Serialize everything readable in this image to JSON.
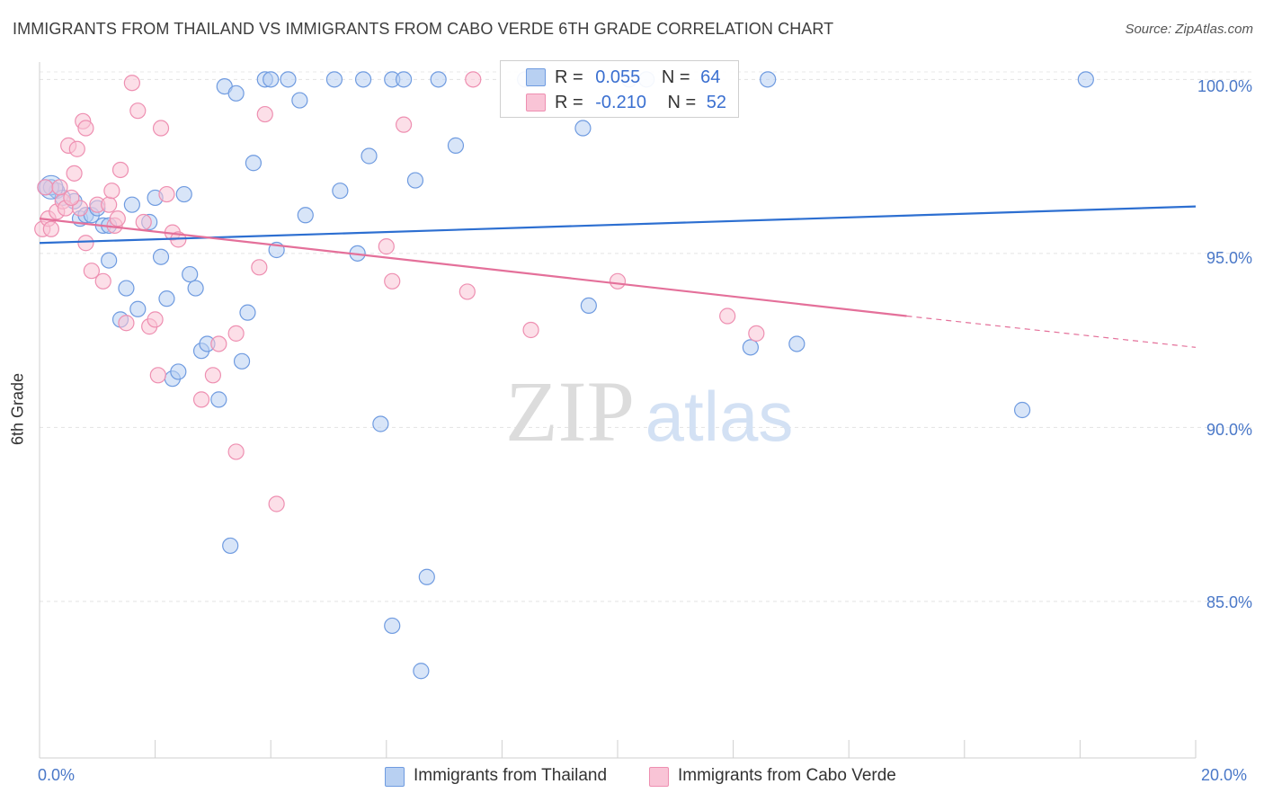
{
  "title": "IMMIGRANTS FROM THAILAND VS IMMIGRANTS FROM CABO VERDE 6TH GRADE CORRELATION CHART",
  "source": "Source: ZipAtlas.com",
  "watermark": {
    "zip": "ZIP",
    "atlas": "atlas"
  },
  "legend_top": {
    "rows": [
      {
        "r_label": "R =",
        "r_value": "0.055",
        "n_label": "N =",
        "n_value": "64",
        "color_fill": "#b8d0f2",
        "color_stroke": "#6f9be0"
      },
      {
        "r_label": "R =",
        "r_value": "-0.210",
        "n_label": "N =",
        "n_value": "52",
        "color_fill": "#f9c4d6",
        "color_stroke": "#ee8fb1"
      }
    ]
  },
  "legend_bottom": {
    "items": [
      {
        "label": "Immigrants from Thailand",
        "color_fill": "#b8d0f2",
        "color_stroke": "#6f9be0"
      },
      {
        "label": "Immigrants from Cabo Verde",
        "color_fill": "#f9c4d6",
        "color_stroke": "#ee8fb1"
      }
    ]
  },
  "chart_data": {
    "type": "scatter",
    "title": "IMMIGRANTS FROM THAILAND VS IMMIGRANTS FROM CABO VERDE 6TH GRADE CORRELATION CHART",
    "xlabel": "",
    "ylabel": "6th Grade",
    "xlim": [
      0,
      20
    ],
    "ylim": [
      80.5,
      100.5
    ],
    "x_ticks": [
      "0.0%",
      "20.0%"
    ],
    "y_ticks": [
      {
        "value": 100,
        "label": "100.0%"
      },
      {
        "value": 95,
        "label": "95.0%"
      },
      {
        "value": 90,
        "label": "90.0%"
      },
      {
        "value": 85,
        "label": "85.0%"
      }
    ],
    "grid": true,
    "series": [
      {
        "name": "Immigrants from Thailand",
        "color": "#6f9be0",
        "fill": "#b8d0f2",
        "trend": {
          "x0": 0,
          "y0": 95.3,
          "x1": 20,
          "y1": 96.35
        },
        "points": [
          [
            0.1,
            96.9
          ],
          [
            0.3,
            96.8
          ],
          [
            0.6,
            96.5
          ],
          [
            0.7,
            96.0
          ],
          [
            0.8,
            96.1
          ],
          [
            0.9,
            96.1
          ],
          [
            1.0,
            96.3
          ],
          [
            1.1,
            95.8
          ],
          [
            1.2,
            95.8
          ],
          [
            1.2,
            94.8
          ],
          [
            1.4,
            93.1
          ],
          [
            1.5,
            94.0
          ],
          [
            1.6,
            96.4
          ],
          [
            1.7,
            93.4
          ],
          [
            1.9,
            95.9
          ],
          [
            2.0,
            96.6
          ],
          [
            2.1,
            94.9
          ],
          [
            2.2,
            93.7
          ],
          [
            2.3,
            91.4
          ],
          [
            2.4,
            91.6
          ],
          [
            2.5,
            96.7
          ],
          [
            2.6,
            94.4
          ],
          [
            2.7,
            94.0
          ],
          [
            2.8,
            92.2
          ],
          [
            2.9,
            92.4
          ],
          [
            3.1,
            90.8
          ],
          [
            3.2,
            99.8
          ],
          [
            3.3,
            86.6
          ],
          [
            3.4,
            99.6
          ],
          [
            3.5,
            91.9
          ],
          [
            3.6,
            93.3
          ],
          [
            3.7,
            97.6
          ],
          [
            3.9,
            100.0
          ],
          [
            4.0,
            100.0
          ],
          [
            4.1,
            95.1
          ],
          [
            4.3,
            100.0
          ],
          [
            4.5,
            99.4
          ],
          [
            4.6,
            96.1
          ],
          [
            5.1,
            100.0
          ],
          [
            5.2,
            96.8
          ],
          [
            5.5,
            95.0
          ],
          [
            5.6,
            100.0
          ],
          [
            5.7,
            97.8
          ],
          [
            5.9,
            90.1
          ],
          [
            6.1,
            100.0
          ],
          [
            6.1,
            84.3
          ],
          [
            6.3,
            100.0
          ],
          [
            6.5,
            97.1
          ],
          [
            6.6,
            83.0
          ],
          [
            6.7,
            85.7
          ],
          [
            6.9,
            100.0
          ],
          [
            7.2,
            98.1
          ],
          [
            8.4,
            100.0
          ],
          [
            9.4,
            98.6
          ],
          [
            9.5,
            93.5
          ],
          [
            10.2,
            100.0
          ],
          [
            10.5,
            100.0
          ],
          [
            12.3,
            92.3
          ],
          [
            12.6,
            100.0
          ],
          [
            13.1,
            92.4
          ],
          [
            17.0,
            90.5
          ],
          [
            18.1,
            100.0
          ],
          [
            0.2,
            96.9
          ],
          [
            0.4,
            96.6
          ]
        ]
      },
      {
        "name": "Immigrants from Cabo Verde",
        "color": "#ee8fb1",
        "fill": "#f9c4d6",
        "trend": {
          "x0": 0,
          "y0": 96.0,
          "x1": 15.0,
          "y1": 93.2,
          "dash_x1": 20,
          "dash_y1": 92.3
        },
        "points": [
          [
            0.05,
            95.7
          ],
          [
            0.1,
            96.9
          ],
          [
            0.15,
            96.0
          ],
          [
            0.2,
            95.7
          ],
          [
            0.3,
            96.2
          ],
          [
            0.4,
            96.5
          ],
          [
            0.45,
            96.3
          ],
          [
            0.5,
            98.1
          ],
          [
            0.6,
            97.3
          ],
          [
            0.65,
            98.0
          ],
          [
            0.7,
            96.3
          ],
          [
            0.75,
            98.8
          ],
          [
            0.8,
            95.3
          ],
          [
            0.8,
            98.6
          ],
          [
            0.9,
            94.5
          ],
          [
            1.0,
            96.4
          ],
          [
            1.1,
            94.2
          ],
          [
            1.2,
            96.4
          ],
          [
            1.25,
            96.8
          ],
          [
            1.3,
            95.8
          ],
          [
            1.35,
            96.0
          ],
          [
            1.4,
            97.4
          ],
          [
            1.5,
            93.0
          ],
          [
            1.6,
            99.9
          ],
          [
            1.7,
            99.1
          ],
          [
            1.8,
            95.9
          ],
          [
            1.9,
            92.9
          ],
          [
            2.0,
            93.1
          ],
          [
            2.05,
            91.5
          ],
          [
            2.1,
            98.6
          ],
          [
            2.2,
            96.7
          ],
          [
            2.3,
            95.6
          ],
          [
            2.4,
            95.4
          ],
          [
            2.8,
            90.8
          ],
          [
            3.0,
            91.5
          ],
          [
            3.1,
            92.4
          ],
          [
            3.4,
            92.7
          ],
          [
            3.4,
            89.3
          ],
          [
            3.8,
            94.6
          ],
          [
            3.9,
            99.0
          ],
          [
            4.1,
            87.8
          ],
          [
            6.0,
            95.2
          ],
          [
            6.1,
            94.2
          ],
          [
            6.3,
            98.7
          ],
          [
            7.4,
            93.9
          ],
          [
            7.5,
            100.0
          ],
          [
            8.5,
            92.8
          ],
          [
            10.0,
            94.2
          ],
          [
            11.9,
            93.2
          ],
          [
            12.4,
            92.7
          ],
          [
            0.55,
            96.6
          ],
          [
            0.35,
            96.9
          ]
        ]
      }
    ]
  }
}
